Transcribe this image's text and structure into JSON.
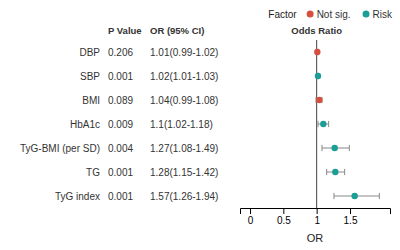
{
  "chart_data": {
    "type": "forest",
    "categories": [
      "DBP",
      "SBP",
      "BMI",
      "HbA1c",
      "TyG-BMI (per SD)",
      "TG",
      "TyG index"
    ],
    "p_values": [
      "0.206",
      "0.001",
      "0.089",
      "0.009",
      "0.004",
      "0.001",
      "0.001"
    ],
    "ci_labels": [
      "1.01(0.99-1.02)",
      "1.02(1.01-1.03)",
      "1.04(0.99-1.08)",
      "1.1(1.02-1.18)",
      "1.27(1.08-1.49)",
      "1.28(1.15-1.42)",
      "1.57(1.26-1.94)"
    ],
    "column_headers": [
      "P Value",
      "OR (95% CI)",
      "Odds Ratio"
    ],
    "series": [
      {
        "name": "Not sig.",
        "color": "#d44f3e",
        "marker": "circle",
        "values": [
          1.01,
          null,
          1.04,
          null,
          null,
          null,
          null
        ],
        "ci_low": [
          0.99,
          null,
          0.99,
          null,
          null,
          null,
          null
        ],
        "ci_high": [
          1.02,
          null,
          1.08,
          null,
          null,
          null,
          null
        ]
      },
      {
        "name": "Risk",
        "color": "#1a9e96",
        "marker": "circle",
        "values": [
          null,
          1.02,
          null,
          1.1,
          1.27,
          1.28,
          1.57
        ],
        "ci_low": [
          null,
          1.01,
          null,
          1.02,
          1.08,
          1.15,
          1.26
        ],
        "ci_high": [
          null,
          1.03,
          null,
          1.18,
          1.49,
          1.42,
          1.94
        ]
      }
    ],
    "legend_title": "Factor",
    "legend": "top-right",
    "ref_line": 1.0,
    "xlabel": "OR",
    "xlim": [
      -0.15,
      2.1
    ],
    "xticks": [
      0.0,
      0.5,
      1.0,
      1.5
    ]
  }
}
